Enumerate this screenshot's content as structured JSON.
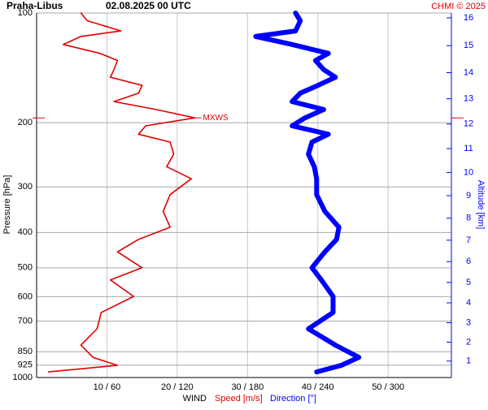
{
  "chart_data": {
    "type": "line",
    "title": "Praha-Libus",
    "subtitle": "02.08.2025 00 UTC",
    "source": "CHMI © 2025",
    "x_label": "WIND",
    "y_label": "Pressure [hPa]",
    "y2_label": "Altitude [km]",
    "annotation": "MXWS",
    "levels": [
      100,
      105,
      112,
      116,
      122,
      129,
      135,
      143,
      150,
      158,
      166,
      175,
      184,
      194,
      204,
      215,
      226,
      244,
      264,
      285,
      315,
      350,
      387,
      418,
      452,
      500,
      540,
      599,
      663,
      735,
      815,
      880,
      926,
      965
    ],
    "series": [
      {
        "name": "Speed [m/s]",
        "color": "#e00000",
        "values": [
          6.3,
          7.2,
          12,
          6.3,
          3.8,
          9,
          11.5,
          11,
          10.5,
          15,
          14.5,
          11,
          17,
          22.5,
          15.5,
          14.5,
          19,
          19.5,
          18.5,
          22,
          19,
          18,
          19,
          14.5,
          11.5,
          15,
          10.5,
          13.8,
          9.2,
          8.6,
          6.3,
          8,
          11.5,
          1.7
        ]
      },
      {
        "name": "Direction [°]",
        "color": "#0000ff",
        "axis": "x2",
        "values": [
          221,
          225,
          221,
          187,
          218,
          249,
          238,
          245,
          255,
          240,
          225,
          218,
          245,
          229,
          218,
          249,
          235,
          232,
          237,
          239,
          239,
          246,
          258,
          256,
          246,
          235,
          243,
          253,
          253,
          232,
          255,
          275,
          260,
          239
        ]
      }
    ],
    "xlim": [
      0,
      59
    ],
    "x2lim": [
      0,
      354
    ],
    "xticks": [
      {
        "value": 10,
        "label": "10 / 60"
      },
      {
        "value": 20,
        "label": "20 / 120"
      },
      {
        "value": 30,
        "label": "30 / 180"
      },
      {
        "value": 40,
        "label": "40 / 240"
      },
      {
        "value": 50,
        "label": "50 / 300"
      }
    ],
    "ylim": [
      1000,
      100
    ],
    "log_y": true,
    "yticks": [
      100,
      200,
      300,
      400,
      500,
      600,
      700,
      850,
      925,
      1000
    ],
    "y2ticks": [
      1,
      2,
      3,
      4,
      5,
      6,
      7,
      8,
      9,
      10,
      11,
      12,
      13,
      14,
      15,
      16
    ],
    "grid": true
  }
}
